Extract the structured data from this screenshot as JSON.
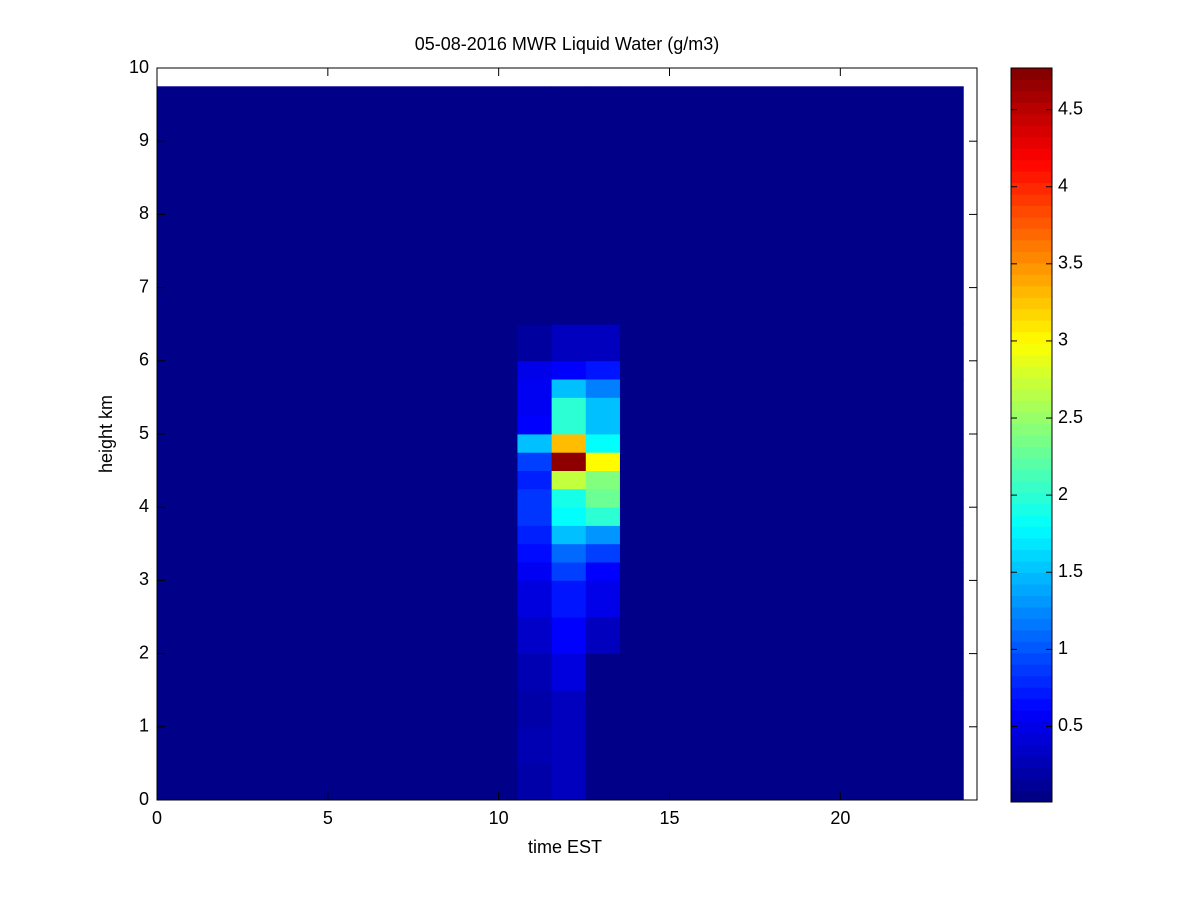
{
  "chart_data": {
    "type": "heatmap",
    "title": "05-08-2016 MWR Liquid Water (g/m3)",
    "x_label": "time EST",
    "y_label": "height km",
    "x_edges": [
      0,
      10.55,
      11.55,
      12.55,
      13.55,
      23.6
    ],
    "y_edges": [
      0,
      0.5,
      1,
      1.5,
      2,
      2.5,
      3,
      3.25,
      3.5,
      3.75,
      4,
      4.25,
      4.5,
      4.75,
      5,
      5.25,
      5.5,
      5.75,
      6,
      6.5,
      9.75
    ],
    "z": [
      [
        0.05,
        0.2,
        0.3,
        0.05,
        0.05
      ],
      [
        0.05,
        0.25,
        0.3,
        0.05,
        0.05
      ],
      [
        0.05,
        0.2,
        0.3,
        0.05,
        0.05
      ],
      [
        0.05,
        0.25,
        0.45,
        0.05,
        0.05
      ],
      [
        0.05,
        0.35,
        0.6,
        0.3,
        0.05
      ],
      [
        0.05,
        0.45,
        0.7,
        0.5,
        0.05
      ],
      [
        0.05,
        0.55,
        0.9,
        0.6,
        0.05
      ],
      [
        0.05,
        0.65,
        1.1,
        0.9,
        0.05
      ],
      [
        0.05,
        0.75,
        1.5,
        1.3,
        0.05
      ],
      [
        0.05,
        0.85,
        1.8,
        2.0,
        0.05
      ],
      [
        0.05,
        0.85,
        1.9,
        2.3,
        0.05
      ],
      [
        0.05,
        0.75,
        2.7,
        2.4,
        0.05
      ],
      [
        0.05,
        0.9,
        4.7,
        3.0,
        0.05
      ],
      [
        0.05,
        1.5,
        3.3,
        1.8,
        0.05
      ],
      [
        0.05,
        0.6,
        2.0,
        1.5,
        0.05
      ],
      [
        0.05,
        0.55,
        2.0,
        1.5,
        0.05
      ],
      [
        0.05,
        0.55,
        1.5,
        1.2,
        0.05
      ],
      [
        0.05,
        0.5,
        0.6,
        0.7,
        0.05
      ],
      [
        0.05,
        0.15,
        0.3,
        0.3,
        0.05
      ],
      [
        0.05,
        0.05,
        0.05,
        0.05,
        0.05
      ]
    ],
    "colormap": "jet",
    "clim": [
      0.01,
      4.77
    ],
    "colorbar_ticks": [
      0.5,
      1,
      1.5,
      2,
      2.5,
      3,
      3.5,
      4,
      4.5
    ],
    "xlim": [
      0,
      24
    ],
    "xticks": [
      0,
      5,
      10,
      15,
      20
    ],
    "ylim": [
      0,
      10
    ],
    "yticks": [
      0,
      1,
      2,
      3,
      4,
      5,
      6,
      7,
      8,
      9,
      10
    ]
  }
}
